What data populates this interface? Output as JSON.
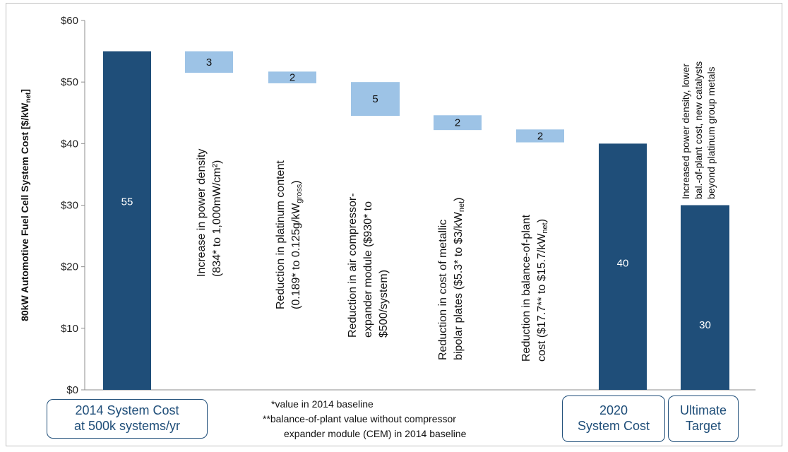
{
  "chart_data": {
    "type": "bar",
    "subtype": "waterfall",
    "ylabel_main": "80kW Automotive Fuel Cell System Cost [$/kW",
    "ylabel_sub": "net",
    "ylabel_end": "]",
    "ylim": [
      0,
      60
    ],
    "yticks": [
      "$0",
      "$10",
      "$20",
      "$30",
      "$40",
      "$50",
      "$60"
    ],
    "ytick_values": [
      0,
      10,
      20,
      30,
      40,
      50,
      60
    ],
    "colors": {
      "total": "#1f4e79",
      "step": "#9dc3e6"
    },
    "totals": [
      {
        "value": 55,
        "label": "55"
      },
      {
        "value": 40,
        "label": "40"
      },
      {
        "value": 30,
        "label": "30"
      }
    ],
    "steps": [
      {
        "label": "3",
        "from": 55,
        "to": 51.5,
        "annotation": [
          "Increase in power density",
          "(834* to 1,000mW/cm²)"
        ]
      },
      {
        "label": "2",
        "from": 51.7,
        "to": 49.8,
        "annotation": [
          "Reduction in platinum content",
          "(0.189* to 0.125g/kW",
          "gross",
          ")"
        ]
      },
      {
        "label": "5",
        "from": 50,
        "to": 44.5,
        "annotation": [
          "Reduction in air compressor-",
          "expander module ($930* to",
          "$500/system)"
        ]
      },
      {
        "label": "2",
        "from": 44.6,
        "to": 42.2,
        "annotation": [
          "Reduction in cost of  metallic",
          "bipolar plates ($5.3* to $3/kW",
          "net",
          ")"
        ]
      },
      {
        "label": "2",
        "from": 42.3,
        "to": 40.2,
        "annotation": [
          "Reduction in balance-of-plant",
          "cost ($17.7** to $15.7/kW",
          "net",
          ")"
        ]
      }
    ],
    "target_annotation": [
      "Increased power density, lower",
      "bal.-of-plant cost, new catalysts",
      "beyond platinum group metals"
    ]
  },
  "categories": {
    "c1": [
      "2014 System Cost",
      "at 500k systems/yr"
    ],
    "c2": [
      "2020",
      "System Cost"
    ],
    "c3": [
      "Ultimate",
      "Target"
    ]
  },
  "footnotes": [
    "*value in  2014 baseline",
    "**balance-of-plant value without compressor",
    "expander module (CEM) in 2014 baseline"
  ]
}
